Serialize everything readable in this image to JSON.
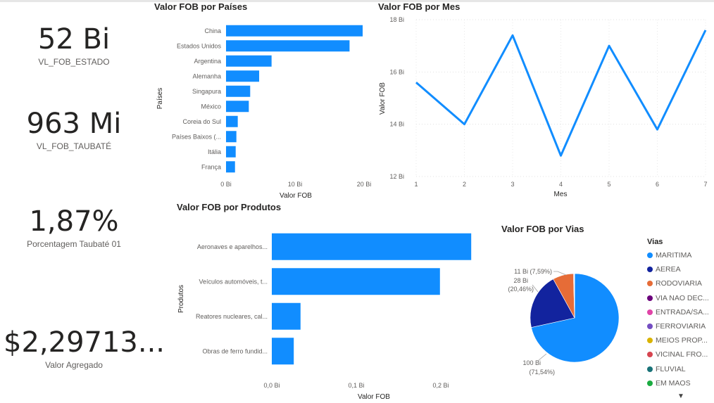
{
  "kpis": [
    {
      "value": "52 Bi",
      "label": "VL_FOB_ESTADO"
    },
    {
      "value": "963 Mi",
      "label": "VL_FOB_TAUBATÉ"
    },
    {
      "value": "1,87%",
      "label": "Porcentagem Taubaté 01"
    },
    {
      "value": "$2,29713...",
      "label": "Valor Agregado"
    }
  ],
  "charts": {
    "paises": {
      "title": "Valor FOB por Países"
    },
    "mes": {
      "title": "Valor FOB por Mes"
    },
    "produtos": {
      "title": "Valor FOB por Produtos"
    },
    "vias": {
      "title": "Valor FOB por Vias"
    }
  },
  "chart_data": [
    {
      "type": "bar",
      "orientation": "horizontal",
      "title": "Valor FOB por Países",
      "xlabel": "Valor FOB",
      "ylabel": "Países",
      "categories": [
        "China",
        "Estados Unidos",
        "Argentina",
        "Alemanha",
        "Singapura",
        "México",
        "Coreia do Sul",
        "Países Baixos (...",
        "Itália",
        "França"
      ],
      "values": [
        19.8,
        17.9,
        6.6,
        4.8,
        3.5,
        3.3,
        1.7,
        1.5,
        1.4,
        1.3
      ],
      "xlim": [
        0,
        20
      ],
      "xticks": [
        0,
        10,
        20
      ],
      "xtick_labels": [
        "0 Bi",
        "10 Bi",
        "20 Bi"
      ],
      "unit": "Bi",
      "color": "#118dff"
    },
    {
      "type": "line",
      "title": "Valor FOB por Mes",
      "xlabel": "Mes",
      "ylabel": "Valor FOB",
      "x": [
        1,
        2,
        3,
        4,
        5,
        6,
        7
      ],
      "values": [
        15.6,
        14.0,
        17.4,
        12.8,
        17.0,
        13.8,
        17.6
      ],
      "ylim": [
        12,
        18
      ],
      "yticks": [
        12,
        14,
        16,
        18
      ],
      "ytick_labels": [
        "12 Bi",
        "14 Bi",
        "16 Bi",
        "18 Bi"
      ],
      "unit": "Bi",
      "grid": true,
      "color": "#118dff"
    },
    {
      "type": "bar",
      "orientation": "horizontal",
      "title": "Valor FOB por Produtos",
      "xlabel": "Valor FOB",
      "ylabel": "Produtos",
      "categories": [
        "Aeronaves e aparelhos...",
        "Veículos automóveis, t...",
        "Reatores nucleares, cal...",
        "Obras de ferro fundid..."
      ],
      "values": [
        0.236,
        0.199,
        0.034,
        0.026
      ],
      "xlim": [
        0,
        0.24
      ],
      "xticks": [
        0,
        0.1,
        0.2
      ],
      "xtick_labels": [
        "0,0 Bi",
        "0,1 Bi",
        "0,2 Bi"
      ],
      "unit": "Bi",
      "color": "#118dff"
    },
    {
      "type": "pie",
      "title": "Valor FOB por Vias",
      "legend_title": "Vias",
      "legend_position": "right",
      "labels": [
        "MARITIMA",
        "AEREA",
        "RODOVIARIA",
        "VIA NAO DEC...",
        "ENTRADA/SA...",
        "FERROVIARIA",
        "MEIOS PROP...",
        "VICINAL FRO...",
        "FLUVIAL",
        "EM MAOS"
      ],
      "percentages": [
        71.54,
        20.46,
        7.59,
        0.2,
        0.1,
        0.05,
        0.03,
        0.02,
        0.01,
        0.0
      ],
      "colors": [
        "#118dff",
        "#12239e",
        "#e66c37",
        "#6b007b",
        "#e044a7",
        "#744ec2",
        "#d9b300",
        "#d64550",
        "#197278",
        "#1aab40"
      ],
      "data_labels": [
        {
          "line1": "100 Bi",
          "line2": "(71,54%)"
        },
        {
          "line1": "28 Bi",
          "line2": "(20,46%)"
        },
        {
          "line1": "11 Bi (7,59%)",
          "line2": ""
        }
      ]
    }
  ]
}
